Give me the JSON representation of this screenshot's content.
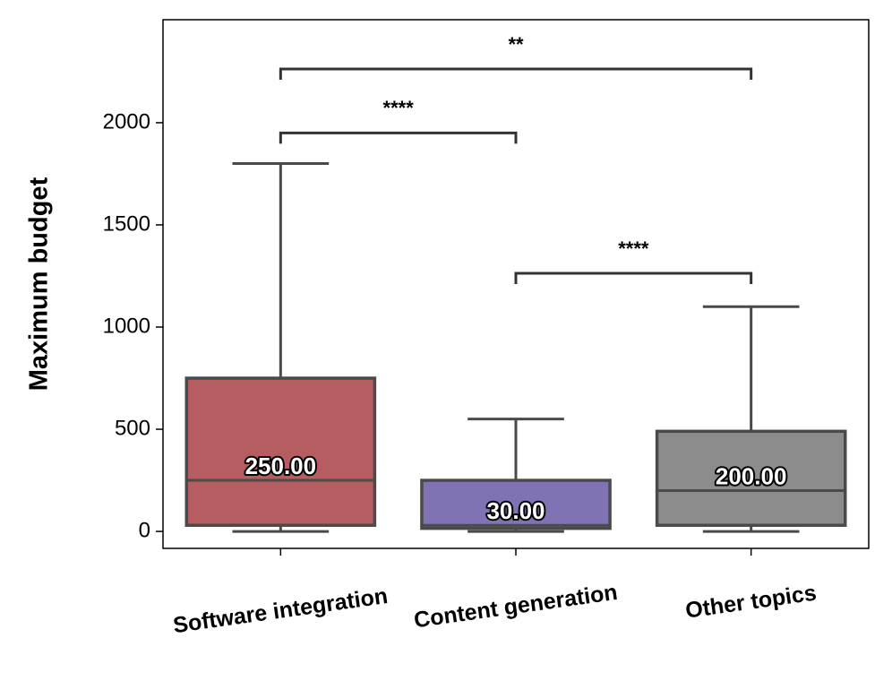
{
  "chart_data": {
    "type": "box",
    "ylabel": "Maximum budget",
    "categories": [
      "Software integration",
      "Content generation",
      "Other topics"
    ],
    "boxes": [
      {
        "whislo": 0,
        "q1": 30,
        "median": 250,
        "median_label": "250.00",
        "q3": 750,
        "whishi": 1800,
        "color": "#b55d60"
      },
      {
        "whislo": 0,
        "q1": 15,
        "median": 30,
        "median_label": "30.00",
        "q3": 250,
        "whishi": 550,
        "color": "#8172b3"
      },
      {
        "whislo": 0,
        "q1": 30,
        "median": 200,
        "median_label": "200.00",
        "q3": 490,
        "whishi": 1100,
        "color": "#8c8c8c"
      }
    ],
    "annotations": [
      {
        "text": "****",
        "from": 0,
        "to": 1,
        "y": 1950
      },
      {
        "text": "**",
        "from": 0,
        "to": 2,
        "y": 2263
      },
      {
        "text": "****",
        "from": 1,
        "to": 2,
        "y": 1263
      }
    ],
    "ylim": [
      -83,
      2504
    ],
    "yticks": [
      0,
      500,
      1000,
      1500,
      2000
    ]
  }
}
